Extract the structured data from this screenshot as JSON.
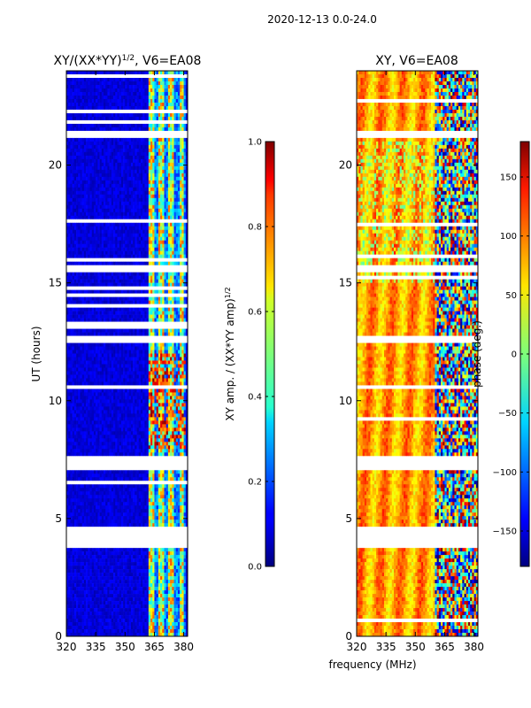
{
  "figure": {
    "suptitle": "2020-12-13 0.0-24.0"
  },
  "chart_data": [
    {
      "type": "heatmap",
      "title_prefix": "XY/(XX*YY)",
      "title_sup": "1/2",
      "title_suffix": ", V6=EA08",
      "xlabel": "",
      "ylabel": "UT (hours)",
      "xlim": [
        320,
        382
      ],
      "ylim": [
        0,
        24
      ],
      "xticks": [
        "320",
        "335",
        "350",
        "365",
        "380"
      ],
      "yticks": [
        "0",
        "5",
        "10",
        "15",
        "20"
      ],
      "colorbar": {
        "label_prefix": "XY amp. / (XX*YY amp)",
        "label_sup": "1/2",
        "range": [
          0.0,
          1.0
        ],
        "ticks": [
          "0.0",
          "0.2",
          "0.4",
          "0.6",
          "0.8",
          "1.0"
        ],
        "colormap": "jet"
      }
    },
    {
      "type": "heatmap",
      "title": "XY, V6=EA08",
      "xlabel": "frequency (MHz)",
      "ylabel": "",
      "xlim": [
        320,
        382
      ],
      "ylim": [
        0,
        24
      ],
      "xticks": [
        "320",
        "335",
        "350",
        "365",
        "380"
      ],
      "yticks": [
        "0",
        "5",
        "10",
        "15",
        "20"
      ],
      "colorbar": {
        "label": "phase (deg.)",
        "range": [
          -180,
          180
        ],
        "ticks": [
          "−150",
          "−100",
          "−50",
          "0",
          "50",
          "100",
          "150"
        ],
        "colormap": "jet"
      }
    }
  ],
  "data_gaps_hours": [
    [
      3.7,
      4.7
    ],
    [
      7.0,
      7.7
    ],
    [
      12.4,
      12.7
    ],
    [
      15.5,
      15.7
    ],
    [
      21.2,
      21.4
    ]
  ]
}
